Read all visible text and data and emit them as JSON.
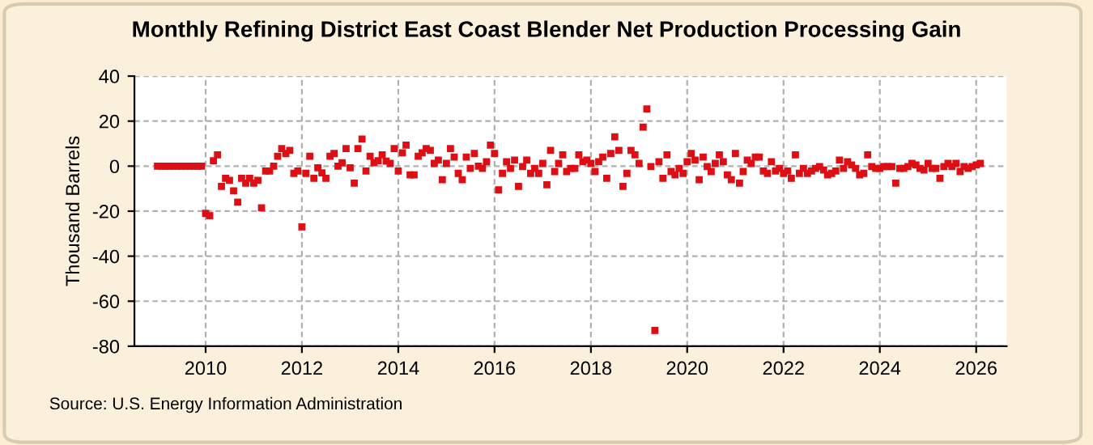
{
  "chart_data": {
    "type": "scatter",
    "title": "Monthly Refining District East Coast Blender Net Production Processing Gain",
    "ylabel": "Thousand Barrels",
    "annotations": [
      "Source: U.S. Energy Information Administration"
    ],
    "x": [
      "2009-01",
      "2009-02",
      "2009-03",
      "2009-04",
      "2009-05",
      "2009-06",
      "2009-07",
      "2009-08",
      "2009-09",
      "2009-10",
      "2009-11",
      "2009-12",
      "2010-01",
      "2010-02",
      "2010-03",
      "2010-04",
      "2010-05",
      "2010-06",
      "2010-07",
      "2010-08",
      "2010-09",
      "2010-10",
      "2010-11",
      "2010-12",
      "2011-01",
      "2011-02",
      "2011-03",
      "2011-04",
      "2011-05",
      "2011-06",
      "2011-07",
      "2011-08",
      "2011-09",
      "2011-10",
      "2011-11",
      "2011-12",
      "2012-01",
      "2012-02",
      "2012-03",
      "2012-04",
      "2012-05",
      "2012-06",
      "2012-07",
      "2012-08",
      "2012-09",
      "2012-10",
      "2012-11",
      "2012-12",
      "2013-01",
      "2013-02",
      "2013-03",
      "2013-04",
      "2013-05",
      "2013-06",
      "2013-07",
      "2013-08",
      "2013-09",
      "2013-10",
      "2013-11",
      "2013-12",
      "2014-01",
      "2014-02",
      "2014-03",
      "2014-04",
      "2014-05",
      "2014-06",
      "2014-07",
      "2014-08",
      "2014-09",
      "2014-10",
      "2014-11",
      "2014-12",
      "2015-01",
      "2015-02",
      "2015-03",
      "2015-04",
      "2015-05",
      "2015-06",
      "2015-07",
      "2015-08",
      "2015-09",
      "2015-10",
      "2015-11",
      "2015-12",
      "2016-01",
      "2016-02",
      "2016-03",
      "2016-04",
      "2016-05",
      "2016-06",
      "2016-07",
      "2016-08",
      "2016-09",
      "2016-10",
      "2016-11",
      "2016-12",
      "2017-01",
      "2017-02",
      "2017-03",
      "2017-04",
      "2017-05",
      "2017-06",
      "2017-07",
      "2017-08",
      "2017-09",
      "2017-10",
      "2017-11",
      "2017-12",
      "2018-01",
      "2018-02",
      "2018-03",
      "2018-04",
      "2018-05",
      "2018-06",
      "2018-07",
      "2018-08",
      "2018-09",
      "2018-10",
      "2018-11",
      "2018-12",
      "2019-01",
      "2019-02",
      "2019-03",
      "2019-04",
      "2019-05",
      "2019-06",
      "2019-07",
      "2019-08",
      "2019-09",
      "2019-10",
      "2019-11",
      "2019-12",
      "2020-01",
      "2020-02",
      "2020-03",
      "2020-04",
      "2020-05",
      "2020-06",
      "2020-07",
      "2020-08",
      "2020-09",
      "2020-10",
      "2020-11",
      "2020-12",
      "2021-01",
      "2021-02",
      "2021-03",
      "2021-04",
      "2021-05",
      "2021-06",
      "2021-07",
      "2021-08",
      "2021-09",
      "2021-10",
      "2021-11",
      "2021-12",
      "2022-01",
      "2022-02",
      "2022-03",
      "2022-04",
      "2022-05",
      "2022-06",
      "2022-07",
      "2022-08",
      "2022-09",
      "2022-10",
      "2022-11",
      "2022-12",
      "2023-01",
      "2023-02",
      "2023-03",
      "2023-04",
      "2023-05",
      "2023-06",
      "2023-07",
      "2023-08",
      "2023-09",
      "2023-10",
      "2023-11",
      "2023-12",
      "2024-01",
      "2024-02",
      "2024-03",
      "2024-04",
      "2024-05",
      "2024-06",
      "2024-07",
      "2024-08",
      "2024-09",
      "2024-10",
      "2024-11",
      "2024-12",
      "2025-01",
      "2025-02",
      "2025-03",
      "2025-04",
      "2025-05",
      "2025-06",
      "2025-07",
      "2025-08",
      "2025-09",
      "2025-10",
      "2025-11",
      "2025-12",
      "2026-01",
      "2026-02"
    ],
    "series": [
      {
        "color": "#dd0f14",
        "values": [
          0,
          0,
          0,
          0,
          0,
          0,
          0,
          0,
          0,
          0,
          0,
          0,
          -21,
          -22,
          2.4,
          5,
          -9,
          -5.4,
          -6.3,
          -11,
          -16,
          -5.4,
          -7.6,
          -5.4,
          -7.6,
          -6.3,
          -18.5,
          -2.2,
          -2.2,
          0,
          4.4,
          7.8,
          5.6,
          7,
          -3.2,
          -2.2,
          -27,
          -3.2,
          4.4,
          -5.4,
          -0.7,
          -3,
          -5.4,
          4.4,
          5.6,
          0,
          1.5,
          7.8,
          -0.7,
          -7.6,
          7.8,
          12,
          -2.2,
          4.4,
          1.5,
          2.4,
          5,
          2.2,
          1.2,
          7.8,
          -2.2,
          5.9,
          9.3,
          -3.9,
          -3.9,
          4.4,
          5.9,
          7.8,
          7,
          1.2,
          2.7,
          -6,
          1.2,
          7.8,
          4,
          -3.2,
          -6,
          4,
          -1,
          5.6,
          0,
          -1,
          2,
          9.3,
          5.6,
          -10.5,
          -3.2,
          2,
          -1,
          2.7,
          -9,
          -0.2,
          2.7,
          -3.2,
          -1,
          -3.2,
          1.2,
          -8.3,
          7,
          -2.4,
          1.2,
          5,
          -2.4,
          -1,
          -1,
          5,
          2,
          2.7,
          1.2,
          -2.4,
          2,
          4,
          -5.4,
          5.6,
          13,
          7,
          -9,
          -3.2,
          7,
          5,
          1.2,
          17.3,
          25.4,
          -0.2,
          -73,
          2,
          -5.4,
          5,
          -2.4,
          -3.9,
          -1,
          -3.2,
          2,
          5.6,
          2.7,
          -6,
          4,
          -0.2,
          -2.4,
          1.2,
          5,
          2,
          -3.9,
          -6,
          5.6,
          -7.6,
          -2.4,
          2.7,
          1.2,
          4,
          4,
          -2.2,
          -3.2,
          2,
          -2.2,
          -1,
          -3.2,
          -2.2,
          -5.4,
          5,
          -3.2,
          -1,
          -3.2,
          -2.2,
          -1,
          -0.2,
          -1.7,
          -3.9,
          -3.2,
          -2.2,
          2.7,
          -1,
          2,
          0.5,
          -1,
          -3.9,
          -3.2,
          5,
          -0.2,
          -1,
          -1,
          -0.2,
          -0.2,
          -0.2,
          -7.6,
          -1,
          -1,
          -0.2,
          1.2,
          0.5,
          -1,
          -1.7,
          1.2,
          -1,
          -1,
          -5.4,
          -0.2,
          1.2,
          -0.2,
          1.2,
          -2.4,
          -0.2,
          -1,
          -0.2,
          0.5,
          1.2
        ]
      }
    ],
    "marker": "square",
    "xlim": [
      "2008-07-10",
      "2026-08-20"
    ],
    "xticks": [
      {
        "value": "2010",
        "label": "2010"
      },
      {
        "value": "2012",
        "label": "2012"
      },
      {
        "value": "2014",
        "label": "2014"
      },
      {
        "value": "2016",
        "label": "2016"
      },
      {
        "value": "2018",
        "label": "2018"
      },
      {
        "value": "2020",
        "label": "2020"
      },
      {
        "value": "2022",
        "label": "2022"
      },
      {
        "value": "2024",
        "label": "2024"
      },
      {
        "value": "2026",
        "label": "2026"
      }
    ],
    "ylim": [
      -80,
      40
    ],
    "yticks": [
      -80,
      -60,
      -40,
      -20,
      0,
      20,
      40
    ],
    "grid": true
  }
}
